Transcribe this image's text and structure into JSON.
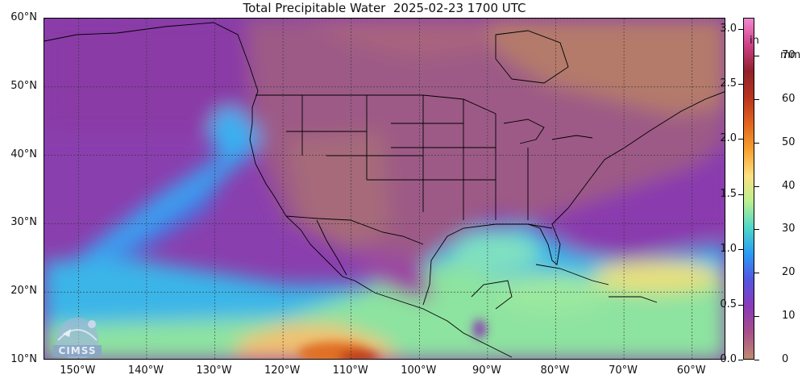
{
  "title": "Total Precipitable Water  2025-02-23 1700 UTC",
  "map": {
    "lat_range": [
      10,
      60
    ],
    "lon_range": [
      -155,
      -55
    ],
    "latitude_labels": [
      "60°N",
      "50°N",
      "40°N",
      "30°N",
      "20°N",
      "10°N"
    ],
    "latitudes": [
      60,
      50,
      40,
      30,
      20,
      10
    ],
    "longitude_labels": [
      "150°W",
      "140°W",
      "130°W",
      "120°W",
      "110°W",
      "100°W",
      "90°W",
      "80°W",
      "70°W",
      "60°W"
    ],
    "longitudes": [
      -150,
      -140,
      -130,
      -120,
      -110,
      -100,
      -90,
      -80,
      -70,
      -60
    ],
    "grid": "dashed"
  },
  "colorbar": {
    "unit_in": "in",
    "unit_mm": "mm",
    "in_labels": [
      "3.0",
      "2.5",
      "2.0",
      "1.5",
      "1.0",
      "0.5",
      "0.0"
    ],
    "in_values": [
      3.0,
      2.5,
      2.0,
      1.5,
      1.0,
      0.5,
      0.0
    ],
    "mm_labels": [
      "70",
      "60",
      "50",
      "40",
      "30",
      "20",
      "10",
      "0"
    ],
    "mm_values": [
      70,
      60,
      50,
      40,
      30,
      20,
      10,
      0
    ],
    "max_in": 3.1,
    "colors": [
      "#c08a70",
      "#a8508a",
      "#8a3ab8",
      "#5555e0",
      "#2a9af5",
      "#4ed7c8",
      "#b9f090",
      "#fde080",
      "#f7a030",
      "#e0641e",
      "#b8341e",
      "#90222c",
      "#d04088",
      "#f08ad0"
    ]
  },
  "logo": {
    "text": "CIMSS"
  },
  "colors": {
    "land": "#a8647e",
    "dry": "#b07a6e",
    "ocean_moist": "#8e46b0",
    "frame": "#000000"
  }
}
